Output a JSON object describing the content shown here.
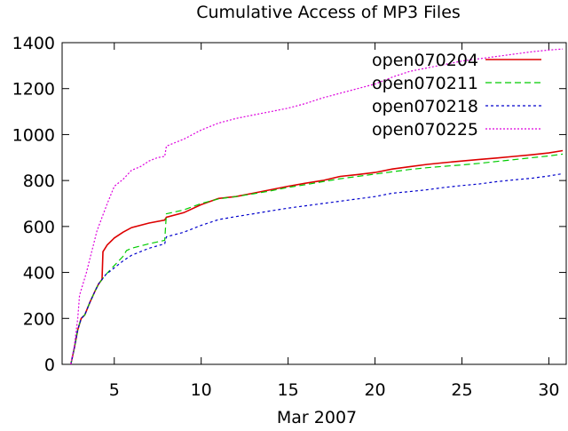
{
  "chart_data": {
    "type": "line",
    "title": "Cumulative Access of MP3 Files",
    "xlabel": "Mar 2007",
    "ylabel": "",
    "xlim": [
      2,
      31
    ],
    "ylim": [
      0,
      1400
    ],
    "xticks": [
      5,
      10,
      15,
      20,
      25,
      30
    ],
    "yticks": [
      0,
      200,
      400,
      600,
      800,
      1000,
      1200,
      1400
    ],
    "grid": false,
    "legend_position": "top-right",
    "series": [
      {
        "name": "open070204",
        "color": "#dd0000",
        "dash": "solid",
        "points": [
          [
            2.5,
            0
          ],
          [
            2.7,
            70
          ],
          [
            2.9,
            150
          ],
          [
            3.1,
            200
          ],
          [
            3.3,
            215
          ],
          [
            3.6,
            270
          ],
          [
            3.9,
            320
          ],
          [
            4.1,
            350
          ],
          [
            4.3,
            370
          ],
          [
            4.35,
            490
          ],
          [
            4.6,
            520
          ],
          [
            5.0,
            550
          ],
          [
            5.5,
            575
          ],
          [
            6.0,
            595
          ],
          [
            7.0,
            615
          ],
          [
            7.9,
            628
          ],
          [
            8.0,
            640
          ],
          [
            9.0,
            660
          ],
          [
            10.0,
            695
          ],
          [
            11.0,
            722
          ],
          [
            12.0,
            730
          ],
          [
            13.0,
            745
          ],
          [
            14.0,
            760
          ],
          [
            15.0,
            775
          ],
          [
            16.0,
            788
          ],
          [
            17.0,
            800
          ],
          [
            18.0,
            818
          ],
          [
            19.0,
            826
          ],
          [
            20.0,
            835
          ],
          [
            21.0,
            850
          ],
          [
            22.0,
            860
          ],
          [
            23.0,
            870
          ],
          [
            24.0,
            878
          ],
          [
            25.0,
            885
          ],
          [
            26.0,
            892
          ],
          [
            27.0,
            898
          ],
          [
            28.0,
            905
          ],
          [
            29.0,
            912
          ],
          [
            30.0,
            920
          ],
          [
            30.8,
            930
          ]
        ]
      },
      {
        "name": "open070211",
        "color": "#00cc00",
        "dash": "7,4",
        "points": [
          [
            2.5,
            0
          ],
          [
            2.7,
            70
          ],
          [
            2.9,
            150
          ],
          [
            3.1,
            200
          ],
          [
            3.3,
            215
          ],
          [
            3.6,
            270
          ],
          [
            3.9,
            320
          ],
          [
            4.1,
            350
          ],
          [
            4.5,
            390
          ],
          [
            5.0,
            430
          ],
          [
            5.5,
            470
          ],
          [
            5.7,
            495
          ],
          [
            6.0,
            505
          ],
          [
            7.0,
            525
          ],
          [
            7.9,
            540
          ],
          [
            8.0,
            655
          ],
          [
            9.0,
            672
          ],
          [
            10.0,
            700
          ],
          [
            11.0,
            720
          ],
          [
            12.0,
            730
          ],
          [
            13.0,
            742
          ],
          [
            14.0,
            755
          ],
          [
            15.0,
            770
          ],
          [
            16.0,
            782
          ],
          [
            17.0,
            795
          ],
          [
            18.0,
            808
          ],
          [
            19.0,
            818
          ],
          [
            20.0,
            828
          ],
          [
            21.0,
            838
          ],
          [
            22.0,
            848
          ],
          [
            23.0,
            856
          ],
          [
            24.0,
            862
          ],
          [
            25.0,
            868
          ],
          [
            26.0,
            875
          ],
          [
            27.0,
            883
          ],
          [
            28.0,
            891
          ],
          [
            29.0,
            899
          ],
          [
            30.0,
            907
          ],
          [
            30.8,
            915
          ]
        ]
      },
      {
        "name": "open070218",
        "color": "#0000cc",
        "dash": "3,3",
        "points": [
          [
            2.5,
            0
          ],
          [
            2.7,
            70
          ],
          [
            2.9,
            150
          ],
          [
            3.1,
            200
          ],
          [
            3.3,
            215
          ],
          [
            3.6,
            270
          ],
          [
            3.9,
            320
          ],
          [
            4.1,
            350
          ],
          [
            4.5,
            390
          ],
          [
            5.0,
            420
          ],
          [
            5.5,
            450
          ],
          [
            6.0,
            475
          ],
          [
            7.0,
            505
          ],
          [
            7.9,
            525
          ],
          [
            8.0,
            555
          ],
          [
            9.0,
            575
          ],
          [
            10.0,
            605
          ],
          [
            11.0,
            630
          ],
          [
            12.0,
            643
          ],
          [
            13.0,
            655
          ],
          [
            14.0,
            668
          ],
          [
            15.0,
            680
          ],
          [
            16.0,
            690
          ],
          [
            17.0,
            700
          ],
          [
            18.0,
            710
          ],
          [
            19.0,
            720
          ],
          [
            20.0,
            730
          ],
          [
            21.0,
            745
          ],
          [
            22.0,
            752
          ],
          [
            23.0,
            760
          ],
          [
            24.0,
            770
          ],
          [
            25.0,
            778
          ],
          [
            26.0,
            785
          ],
          [
            27.0,
            795
          ],
          [
            28.0,
            803
          ],
          [
            29.0,
            810
          ],
          [
            30.0,
            820
          ],
          [
            30.8,
            830
          ]
        ]
      },
      {
        "name": "open070225",
        "color": "#dd00dd",
        "dash": "2,2",
        "points": [
          [
            2.5,
            0
          ],
          [
            2.7,
            80
          ],
          [
            2.9,
            200
          ],
          [
            3.0,
            300
          ],
          [
            3.2,
            350
          ],
          [
            3.4,
            400
          ],
          [
            3.6,
            460
          ],
          [
            3.8,
            520
          ],
          [
            4.0,
            580
          ],
          [
            4.3,
            640
          ],
          [
            4.6,
            700
          ],
          [
            5.0,
            775
          ],
          [
            5.5,
            805
          ],
          [
            6.0,
            845
          ],
          [
            6.5,
            860
          ],
          [
            7.0,
            885
          ],
          [
            7.5,
            900
          ],
          [
            7.9,
            905
          ],
          [
            8.0,
            950
          ],
          [
            8.5,
            965
          ],
          [
            9.0,
            980
          ],
          [
            9.5,
            1000
          ],
          [
            10.0,
            1020
          ],
          [
            11.0,
            1050
          ],
          [
            12.0,
            1070
          ],
          [
            13.0,
            1085
          ],
          [
            14.0,
            1100
          ],
          [
            15.0,
            1115
          ],
          [
            16.0,
            1135
          ],
          [
            17.0,
            1160
          ],
          [
            18.0,
            1180
          ],
          [
            19.0,
            1200
          ],
          [
            20.0,
            1220
          ],
          [
            21.0,
            1250
          ],
          [
            22.0,
            1275
          ],
          [
            23.0,
            1290
          ],
          [
            24.0,
            1305
          ],
          [
            25.0,
            1320
          ],
          [
            26.0,
            1330
          ],
          [
            27.0,
            1340
          ],
          [
            28.0,
            1350
          ],
          [
            29.0,
            1360
          ],
          [
            30.0,
            1368
          ],
          [
            30.8,
            1372
          ]
        ]
      }
    ]
  }
}
